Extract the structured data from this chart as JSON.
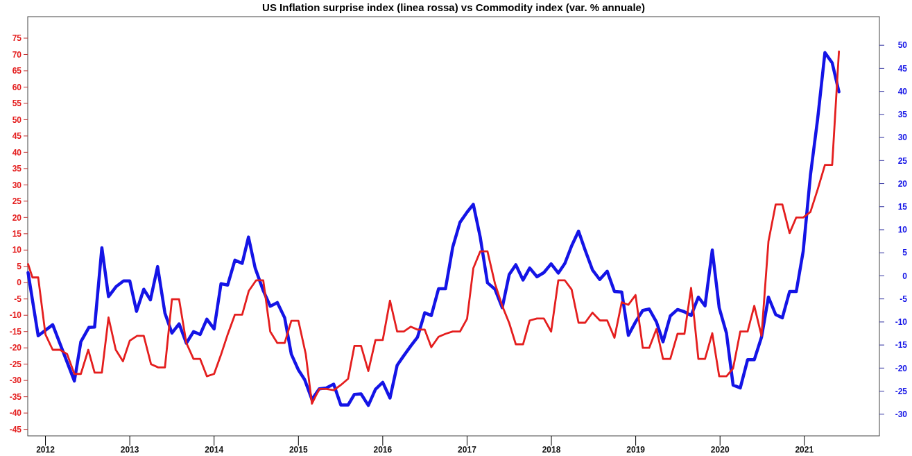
{
  "chart_data": {
    "type": "line",
    "title": "US Inflation surprise index (linea rossa) vs Commodity index (var. % annuale)",
    "xlim": [
      2011.79,
      2021.89
    ],
    "xticks": [
      2012,
      2013,
      2014,
      2015,
      2016,
      2017,
      2018,
      2019,
      2020,
      2021
    ],
    "ylim": [
      -47,
      81.6
    ],
    "yticks": [
      -45,
      -40,
      -35,
      -30,
      -25,
      -20,
      -15,
      -10,
      -5,
      0,
      5,
      10,
      15,
      20,
      25,
      30,
      35,
      40,
      45,
      50,
      55,
      60,
      65,
      70,
      75
    ],
    "y2lim": [
      -34.7,
      56.2
    ],
    "y2ticks": [
      -30,
      -25,
      -20,
      -15,
      -10,
      -5,
      0,
      5,
      10,
      15,
      20,
      25,
      30,
      35,
      40,
      45,
      50
    ],
    "series": [
      {
        "color": "#1414e6",
        "axis": "y2",
        "x": [
          2011.794,
          2011.914,
          2012.086,
          2012.343,
          2012.42,
          2012.515,
          2012.583,
          2012.669,
          2012.748,
          2012.84,
          2012.926,
          2013.0,
          2013.08,
          2013.166,
          2013.245,
          2013.33,
          2013.417,
          2013.5,
          2013.585,
          2013.671,
          2013.756,
          2013.835,
          2013.914,
          2014.0,
          2014.082,
          2014.161,
          2014.247,
          2014.333,
          2014.408,
          2014.487,
          2014.583,
          2014.666,
          2014.75,
          2014.837,
          2014.916,
          2015.0,
          2015.074,
          2015.16,
          2015.247,
          2015.33,
          2015.418,
          2015.503,
          2015.589,
          2015.664,
          2015.743,
          2015.829,
          2015.914,
          2016.0,
          2016.086,
          2016.171,
          2016.25,
          2016.333,
          2016.412,
          2016.498,
          2016.576,
          2016.662,
          2016.744,
          2016.83,
          2016.916,
          2017.0,
          2017.074,
          2017.156,
          2017.242,
          2017.331,
          2017.417,
          2017.5,
          2017.578,
          2017.664,
          2017.743,
          2017.829,
          2017.911,
          2017.997,
          2018.082,
          2018.16,
          2018.24,
          2018.322,
          2018.4,
          2018.487,
          2018.573,
          2018.662,
          2018.748,
          2018.834,
          2018.913,
          2018.998,
          2019.084,
          2019.16,
          2019.246,
          2019.324,
          2019.41,
          2019.496,
          2019.578,
          2019.657,
          2019.743,
          2019.822,
          2019.908,
          2019.99,
          2020.076,
          2020.155,
          2020.24,
          2020.327,
          2020.406,
          2020.492,
          2020.574,
          2020.66,
          2020.739,
          2020.825,
          2020.904,
          2020.986,
          2021.072,
          2021.158,
          2021.244,
          2021.33,
          2021.41
        ],
        "values": [
          0.7,
          -13.0,
          -10.6,
          -22.8,
          -14.3,
          -11.2,
          -11.1,
          6.1,
          -4.5,
          -2.3,
          -1.1,
          -1.1,
          -7.7,
          -2.9,
          -5.2,
          2.0,
          -8.1,
          -12.4,
          -10.4,
          -14.6,
          -12.1,
          -12.7,
          -9.4,
          -11.5,
          -1.7,
          -2.0,
          3.4,
          2.7,
          8.4,
          1.7,
          -3.2,
          -6.6,
          -5.8,
          -9.1,
          -17.0,
          -20.4,
          -22.5,
          -26.8,
          -24.5,
          -24.3,
          -23.5,
          -28.0,
          -28.0,
          -25.7,
          -25.6,
          -28.1,
          -24.6,
          -23.1,
          -26.5,
          -19.4,
          -17.3,
          -15.2,
          -13.3,
          -8.0,
          -8.6,
          -2.8,
          -2.8,
          6.2,
          11.6,
          13.8,
          15.5,
          8.4,
          -1.5,
          -2.9,
          -6.9,
          0.3,
          2.4,
          -0.9,
          1.7,
          -0.2,
          0.7,
          2.6,
          0.6,
          2.7,
          6.5,
          9.7,
          5.6,
          1.3,
          -0.8,
          1.0,
          -3.4,
          -3.5,
          -12.9,
          -10.0,
          -7.5,
          -7.2,
          -10.0,
          -14.3,
          -8.7,
          -7.3,
          -7.8,
          -8.6,
          -4.6,
          -6.5,
          5.6,
          -6.9,
          -12.4,
          -23.7,
          -24.3,
          -18.2,
          -18.2,
          -13.3,
          -4.6,
          -8.4,
          -9.1,
          -3.4,
          -3.4,
          5.3,
          21.8,
          34.1,
          48.4,
          46.2,
          39.9
        ]
      },
      {
        "color": "#e41e1e",
        "x": [
          2011.794,
          2011.846,
          2011.914,
          2012.0,
          2012.086,
          2012.172,
          2012.257,
          2012.343,
          2012.42,
          2012.508,
          2012.583,
          2012.669,
          2012.748,
          2012.834,
          2012.919,
          2013.0,
          2013.087,
          2013.166,
          2013.252,
          2013.338,
          2013.417,
          2013.5,
          2013.585,
          2013.671,
          2013.756,
          2013.835,
          2013.914,
          2014.0,
          2014.082,
          2014.161,
          2014.247,
          2014.333,
          2014.412,
          2014.498,
          2014.583,
          2014.666,
          2014.75,
          2014.837,
          2014.916,
          2015.0,
          2015.087,
          2015.16,
          2015.247,
          2015.33,
          2015.418,
          2015.503,
          2015.589,
          2015.664,
          2015.743,
          2015.829,
          2015.914,
          2016.0,
          2016.086,
          2016.171,
          2016.25,
          2016.333,
          2016.412,
          2016.498,
          2016.576,
          2016.662,
          2016.744,
          2016.83,
          2016.916,
          2017.0,
          2017.074,
          2017.156,
          2017.242,
          2017.331,
          2017.417,
          2017.5,
          2017.578,
          2017.664,
          2017.743,
          2017.829,
          2017.911,
          2017.997,
          2018.082,
          2018.16,
          2018.24,
          2018.322,
          2018.4,
          2018.487,
          2018.576,
          2018.662,
          2018.748,
          2018.834,
          2018.913,
          2018.998,
          2019.084,
          2019.16,
          2019.246,
          2019.324,
          2019.41,
          2019.496,
          2019.578,
          2019.657,
          2019.743,
          2019.822,
          2019.908,
          2019.99,
          2020.076,
          2020.155,
          2020.24,
          2020.327,
          2020.406,
          2020.492,
          2020.574,
          2020.66,
          2020.739,
          2020.825,
          2020.904,
          2020.986,
          2021.072,
          2021.158,
          2021.244,
          2021.33,
          2021.41
        ],
        "values": [
          5.7,
          1.6,
          1.6,
          -15.9,
          -20.6,
          -20.6,
          -21.9,
          -28.0,
          -28.0,
          -20.6,
          -27.6,
          -27.6,
          -10.7,
          -20.6,
          -24.1,
          -17.8,
          -16.3,
          -16.3,
          -25.0,
          -26.0,
          -26.0,
          -5.1,
          -5.1,
          -18.5,
          -23.4,
          -23.4,
          -28.7,
          -28.0,
          -22.1,
          -15.9,
          -9.8,
          -9.8,
          -2.5,
          0.7,
          0.7,
          -15.0,
          -18.5,
          -18.5,
          -11.7,
          -11.7,
          -21.9,
          -37.1,
          -32.6,
          -32.6,
          -33.0,
          -31.4,
          -29.5,
          -19.4,
          -19.4,
          -27.1,
          -17.6,
          -17.6,
          -5.5,
          -15.0,
          -15.0,
          -13.5,
          -14.4,
          -14.4,
          -19.8,
          -16.6,
          -15.7,
          -15.0,
          -15.0,
          -11.1,
          4.4,
          9.6,
          9.6,
          -0.3,
          -7.1,
          -12.4,
          -18.9,
          -18.9,
          -11.6,
          -11.0,
          -11.0,
          -15.0,
          0.7,
          0.7,
          -2.1,
          -12.3,
          -12.3,
          -9.2,
          -11.6,
          -11.6,
          -16.9,
          -6.0,
          -6.8,
          -3.8,
          -20.0,
          -20.0,
          -14.2,
          -23.4,
          -23.4,
          -15.7,
          -15.7,
          -1.6,
          -23.4,
          -23.4,
          -15.5,
          -28.7,
          -28.7,
          -26.3,
          -15.0,
          -15.0,
          -7.1,
          -16.3,
          12.6,
          24.0,
          24.0,
          15.2,
          20.0,
          20.0,
          21.7,
          28.6,
          36.1,
          36.1,
          70.9
        ]
      }
    ]
  }
}
